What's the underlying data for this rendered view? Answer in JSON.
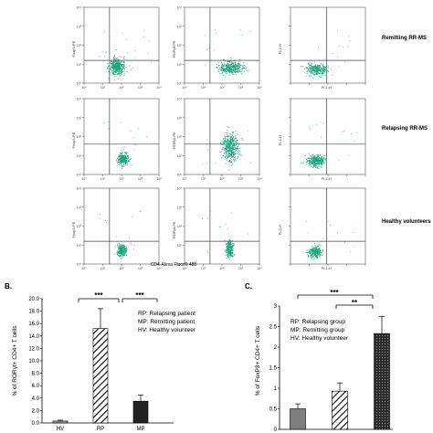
{
  "flow_panel": {
    "row_labels": [
      "Remitting RR-MS",
      "Relapsing RR-MS",
      "Healthy volunteers"
    ],
    "col1_ylabel": "Foxp3-PE",
    "col2_ylabel": "RORγt-PE",
    "col3_ylabel": "FL2-H",
    "col3_xlabel": "FL1-H",
    "shared_xlabel": "CD4-Alexa Fluor® 488",
    "decade_ticks": [
      "10⁰",
      "10¹",
      "10²",
      "10³",
      "10⁴"
    ],
    "dot_color": "#1aa37e"
  },
  "panel_b": {
    "letter": "B.",
    "legend": [
      "RP: Relapsing patient",
      "MP: Remitting patient",
      "HV: Healthy volunteer"
    ],
    "significance": [
      "***",
      "***"
    ]
  },
  "panel_c": {
    "letter": "C.",
    "legend": [
      "RP: Relapsing group",
      "MP: Remitting group",
      "HV: Healthy volunteer"
    ],
    "significance": [
      "***",
      "**"
    ]
  },
  "chart_data": [
    {
      "type": "bar",
      "categories": [
        "HV",
        "RP",
        "MP"
      ],
      "values": [
        0.3,
        15.2,
        3.5
      ],
      "errors": [
        0.15,
        3.2,
        1.0
      ],
      "ylabel": "% of RORγt+ CD4+ T cells",
      "ylim": [
        0,
        20
      ],
      "yticks": [
        "0.0",
        "2.0",
        "4.0",
        "6.0",
        "8.0",
        "10.0",
        "12.0",
        "14.0",
        "16.0",
        "18.0",
        "20.0"
      ],
      "colors": [
        "#9a9a9a",
        "hatch",
        "#222222"
      ]
    },
    {
      "type": "bar",
      "categories": [
        "HV",
        "MP",
        "RP"
      ],
      "values": [
        0.5,
        0.93,
        2.33
      ],
      "errors": [
        0.12,
        0.2,
        0.42
      ],
      "ylabel": "% of FoxP3+ CD4+ T cells",
      "ylim": [
        0,
        3
      ],
      "yticks": [
        "0",
        "0.5",
        "1",
        "1.5",
        "2",
        "2.5",
        "3"
      ],
      "colors": [
        "#7f7f7f",
        "hatch",
        "dots"
      ]
    }
  ]
}
